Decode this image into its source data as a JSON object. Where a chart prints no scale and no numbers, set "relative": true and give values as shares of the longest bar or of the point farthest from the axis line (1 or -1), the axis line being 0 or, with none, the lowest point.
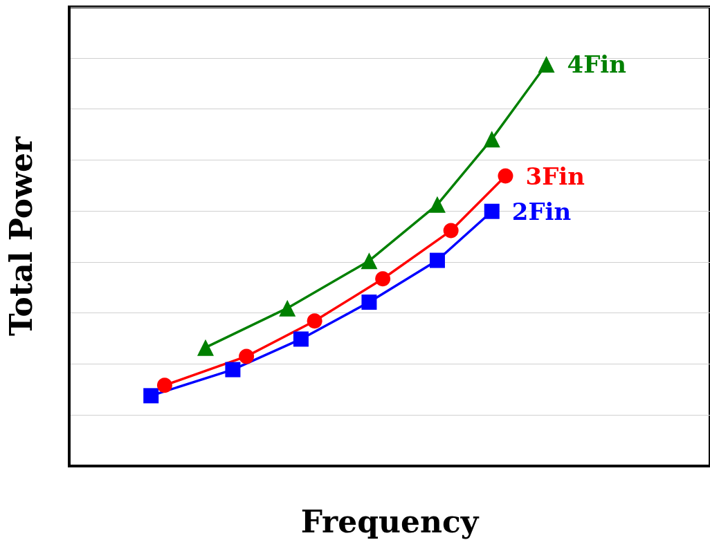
{
  "chart_data": {
    "type": "line",
    "relative": true,
    "xlabel": "Frequency",
    "ylabel": "Total Power",
    "grid": "y",
    "tick_labels": false,
    "categories": [
      null,
      null,
      null,
      null,
      null,
      null,
      null,
      null,
      null,
      null,
      null,
      null,
      null,
      null,
      null,
      null,
      null,
      null,
      null,
      null,
      null,
      null,
      null,
      null,
      null,
      null,
      null,
      null,
      null,
      null,
      null,
      null,
      null,
      null,
      null,
      null,
      null,
      null,
      null,
      null,
      null,
      null,
      null,
      null,
      null,
      null,
      null,
      null
    ],
    "series": [
      {
        "name": "2Fin",
        "color": "#0000ff",
        "marker": "square",
        "values": [
          null,
          null,
          null,
          null,
          null,
          null,
          0.175,
          null,
          null,
          null,
          null,
          null,
          0.24,
          null,
          null,
          null,
          null,
          0.316,
          null,
          null,
          null,
          null,
          0.408,
          null,
          null,
          null,
          null,
          0.512,
          null,
          null,
          null,
          0.634,
          null,
          null,
          null,
          null,
          null,
          null,
          null,
          null,
          null,
          null,
          null,
          null,
          null,
          null,
          null,
          null
        ]
      },
      {
        "name": "3Fin",
        "color": "#ff0000",
        "marker": "circle",
        "values": [
          null,
          null,
          null,
          null,
          null,
          null,
          null,
          0.201,
          null,
          null,
          null,
          null,
          null,
          0.273,
          null,
          null,
          null,
          null,
          0.361,
          null,
          null,
          null,
          null,
          0.466,
          null,
          null,
          null,
          null,
          0.586,
          null,
          null,
          null,
          0.722,
          null,
          null,
          null,
          null,
          null,
          null,
          null,
          null,
          null,
          null,
          null,
          null,
          null,
          null,
          null
        ]
      },
      {
        "name": "4Fin",
        "color": "#008000",
        "marker": "triangle",
        "values": [
          null,
          null,
          null,
          null,
          null,
          null,
          null,
          null,
          null,
          null,
          0.295,
          null,
          null,
          null,
          null,
          null,
          0.393,
          null,
          null,
          null,
          null,
          null,
          0.511,
          null,
          null,
          null,
          null,
          0.651,
          null,
          null,
          null,
          0.814,
          null,
          null,
          null,
          1,
          null,
          null,
          null,
          null,
          null,
          null,
          null,
          null,
          null,
          null,
          null,
          null
        ]
      }
    ]
  }
}
